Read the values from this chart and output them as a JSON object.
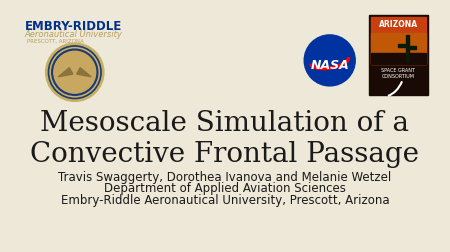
{
  "background_color": "#EDE8D8",
  "title_line1": "Mesoscale Simulation of a",
  "title_line2": "Convective Frontal Passage",
  "subtitle1": "Travis Swaggerty, Dorothea Ivanova and Melanie Wetzel",
  "subtitle2": "Department of Applied Aviation Sciences",
  "subtitle3": "Embry-Riddle Aeronautical University, Prescott, Arizona",
  "title_fontsize": 20,
  "subtitle_fontsize": 8.5,
  "title_color": "#1a1a1a",
  "subtitle_color": "#1a1a1a",
  "embry_riddle_blue": "#003087",
  "embry_riddle_gold": "#b8a060",
  "er_text1": "EMBRY-RIDDLE",
  "er_text2": "Aeronautical University",
  "er_text3": "PRESCOTT, ARIZONA",
  "nasa_blue": "#0033a0",
  "az_grant_text1": "ARIZONA",
  "az_grant_text2": "SPACE GRANT",
  "az_grant_text3": "CONSORTIUM"
}
